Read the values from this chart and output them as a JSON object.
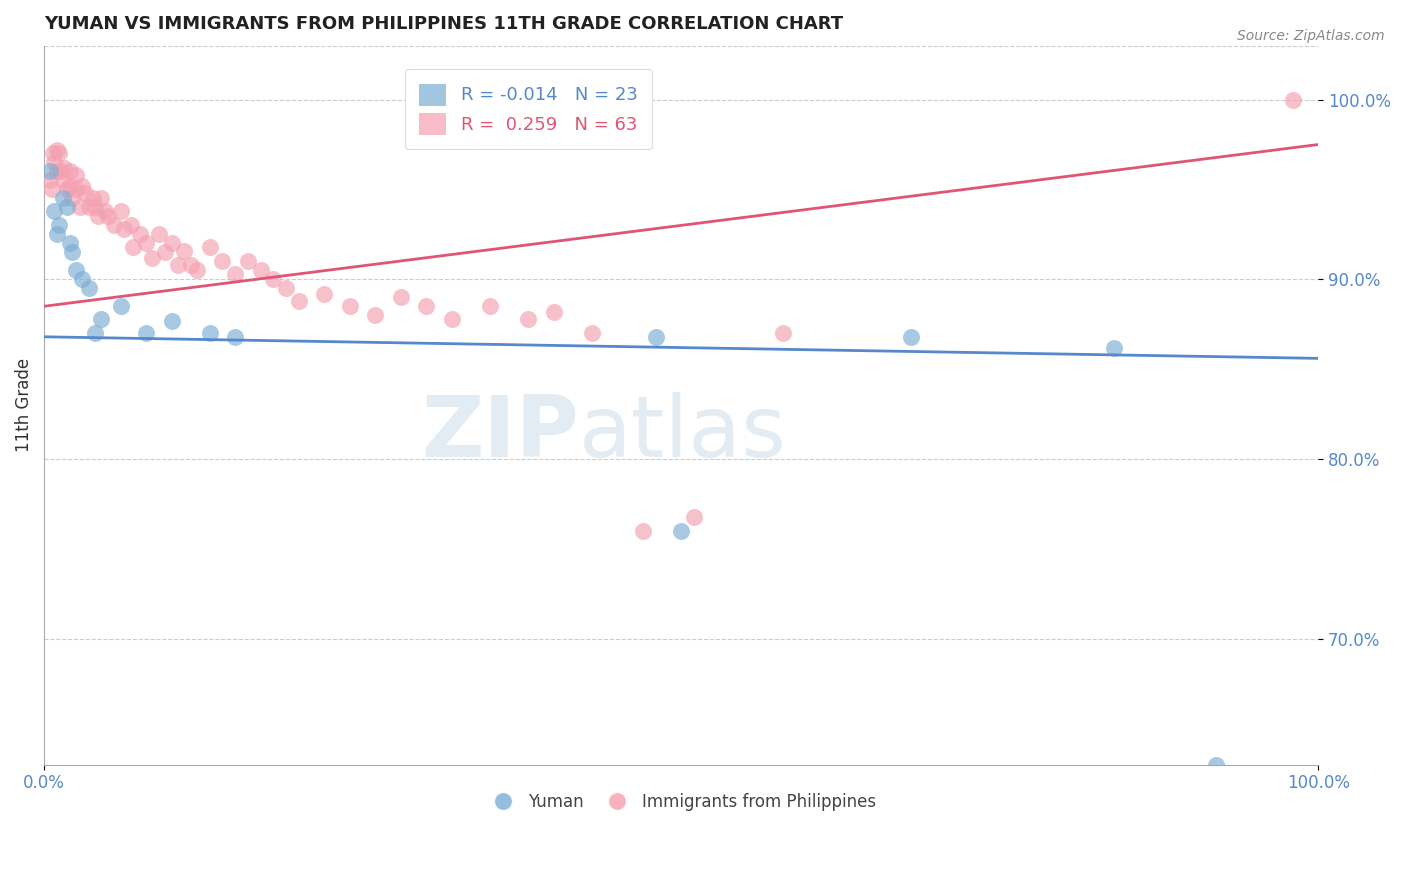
{
  "title": "YUMAN VS IMMIGRANTS FROM PHILIPPINES 11TH GRADE CORRELATION CHART",
  "source_text": "Source: ZipAtlas.com",
  "xlabel": "",
  "ylabel": "11th Grade",
  "xlim": [
    0.0,
    1.0
  ],
  "ylim": [
    0.63,
    1.03
  ],
  "yticks": [
    0.7,
    0.8,
    0.9,
    1.0
  ],
  "ytick_labels": [
    "70.0%",
    "80.0%",
    "90.0%",
    "100.0%"
  ],
  "xticks": [
    0.0,
    1.0
  ],
  "xtick_labels": [
    "0.0%",
    "100.0%"
  ],
  "grid_color": "#cccccc",
  "background_color": "#ffffff",
  "blue_color": "#7badd4",
  "pink_color": "#f4a0b0",
  "blue_line_color": "#5588cc",
  "pink_line_color": "#e05575",
  "R_blue": -0.014,
  "N_blue": 23,
  "R_pink": 0.259,
  "N_pink": 63,
  "blue_line_x0": 0.0,
  "blue_line_y0": 0.868,
  "blue_line_x1": 1.0,
  "blue_line_y1": 0.856,
  "pink_line_x0": 0.0,
  "pink_line_y0": 0.885,
  "pink_line_x1": 1.0,
  "pink_line_y1": 0.975,
  "blue_scatter_x": [
    0.005,
    0.008,
    0.01,
    0.012,
    0.015,
    0.018,
    0.02,
    0.022,
    0.025,
    0.03,
    0.035,
    0.04,
    0.045,
    0.06,
    0.08,
    0.1,
    0.13,
    0.15,
    0.48,
    0.5,
    0.68,
    0.84,
    0.92
  ],
  "blue_scatter_y": [
    0.96,
    0.938,
    0.925,
    0.93,
    0.945,
    0.94,
    0.92,
    0.915,
    0.905,
    0.9,
    0.895,
    0.87,
    0.878,
    0.885,
    0.87,
    0.877,
    0.87,
    0.868,
    0.868,
    0.76,
    0.868,
    0.862,
    0.63
  ],
  "pink_scatter_x": [
    0.005,
    0.006,
    0.007,
    0.008,
    0.01,
    0.01,
    0.012,
    0.013,
    0.015,
    0.016,
    0.018,
    0.02,
    0.02,
    0.022,
    0.025,
    0.025,
    0.028,
    0.03,
    0.032,
    0.035,
    0.038,
    0.04,
    0.042,
    0.045,
    0.048,
    0.05,
    0.055,
    0.06,
    0.063,
    0.068,
    0.07,
    0.075,
    0.08,
    0.085,
    0.09,
    0.095,
    0.1,
    0.105,
    0.11,
    0.115,
    0.12,
    0.13,
    0.14,
    0.15,
    0.16,
    0.17,
    0.18,
    0.19,
    0.2,
    0.22,
    0.24,
    0.26,
    0.28,
    0.3,
    0.32,
    0.35,
    0.38,
    0.4,
    0.43,
    0.47,
    0.51,
    0.58,
    0.98
  ],
  "pink_scatter_y": [
    0.955,
    0.95,
    0.97,
    0.965,
    0.972,
    0.96,
    0.97,
    0.96,
    0.955,
    0.962,
    0.95,
    0.96,
    0.952,
    0.945,
    0.958,
    0.95,
    0.94,
    0.952,
    0.948,
    0.94,
    0.945,
    0.94,
    0.935,
    0.945,
    0.938,
    0.935,
    0.93,
    0.938,
    0.928,
    0.93,
    0.918,
    0.925,
    0.92,
    0.912,
    0.925,
    0.915,
    0.92,
    0.908,
    0.916,
    0.908,
    0.905,
    0.918,
    0.91,
    0.903,
    0.91,
    0.905,
    0.9,
    0.895,
    0.888,
    0.892,
    0.885,
    0.88,
    0.89,
    0.885,
    0.878,
    0.885,
    0.878,
    0.882,
    0.87,
    0.76,
    0.768,
    0.87,
    1.0
  ],
  "watermark_text": "ZIPatlas",
  "watermark_color": "#c8d8e8",
  "watermark_alpha": 0.5
}
